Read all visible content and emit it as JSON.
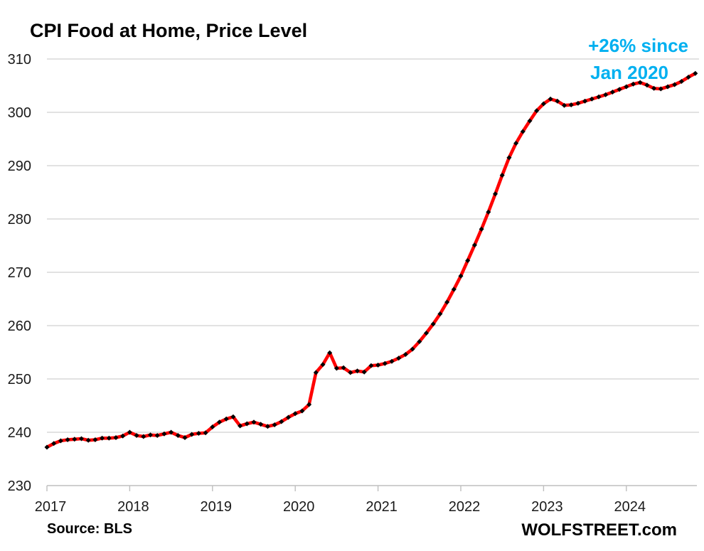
{
  "chart_data": {
    "type": "line",
    "title": "CPI Food at Home, Price Level",
    "annotation": {
      "line1": "+26% since",
      "line2": "Jan 2020"
    },
    "source_note": "Source: BLS",
    "brand": "WOLFSTREET.com",
    "xlabel": "",
    "ylabel": "",
    "x_tick_labels": [
      "2017",
      "2018",
      "2019",
      "2020",
      "2021",
      "2022",
      "2023",
      "2024"
    ],
    "y_ticks": [
      230,
      240,
      250,
      260,
      270,
      280,
      290,
      300,
      310
    ],
    "ylim": [
      230,
      310
    ],
    "grid": "horizontal-only",
    "legend": "none",
    "series": [
      {
        "name": "CPI Food at Home price level index",
        "frequency": "monthly",
        "start": "2017-01",
        "end": "2024-11",
        "line_color": "#FF0000",
        "marker": "black-diamond",
        "marker_color": "#000000",
        "values": [
          237.2,
          237.9,
          238.4,
          238.6,
          238.7,
          238.8,
          238.5,
          238.6,
          238.9,
          238.9,
          239.0,
          239.3,
          240.0,
          239.4,
          239.2,
          239.5,
          239.4,
          239.7,
          240.0,
          239.4,
          239.0,
          239.6,
          239.8,
          239.9,
          241.0,
          241.9,
          242.5,
          242.9,
          241.2,
          241.6,
          241.9,
          241.5,
          241.1,
          241.4,
          242.0,
          242.8,
          243.5,
          244.0,
          245.2,
          251.2,
          252.7,
          254.9,
          252.0,
          252.1,
          251.2,
          251.5,
          251.3,
          252.5,
          252.6,
          252.9,
          253.3,
          253.9,
          254.6,
          255.6,
          257.0,
          258.6,
          260.3,
          262.2,
          264.4,
          266.8,
          269.3,
          272.2,
          275.1,
          278.1,
          281.3,
          284.7,
          288.2,
          291.5,
          294.2,
          296.4,
          298.4,
          300.3,
          301.6,
          302.5,
          302.1,
          301.3,
          301.4,
          301.7,
          302.1,
          302.5,
          302.9,
          303.3,
          303.8,
          304.3,
          304.8,
          305.3,
          305.6,
          305.1,
          304.5,
          304.4,
          304.8,
          305.2,
          305.8,
          306.6,
          307.3
        ]
      }
    ],
    "colors": {
      "annotation": "#00B0F0",
      "gridline": "#D9D9D9",
      "axis": "#BFBFBF",
      "tick_text": "#1A1A1A",
      "title_text": "#000000",
      "background": "#FFFFFF"
    }
  }
}
